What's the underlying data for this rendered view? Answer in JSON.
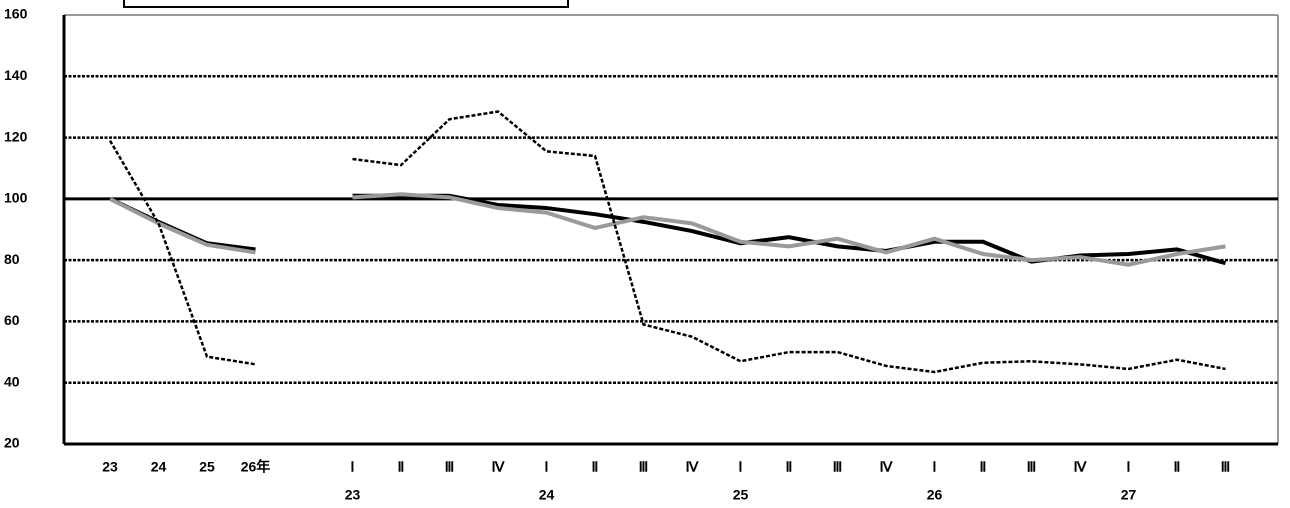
{
  "chart_data": {
    "type": "line",
    "categories": [
      "23",
      "24",
      "25",
      "26年",
      null,
      "Ⅰ",
      "Ⅱ",
      "Ⅲ",
      "Ⅳ",
      "Ⅰ",
      "Ⅱ",
      "Ⅲ",
      "Ⅳ",
      "Ⅰ",
      "Ⅱ",
      "Ⅲ",
      "Ⅳ",
      "Ⅰ",
      "Ⅱ",
      "Ⅲ",
      "Ⅳ",
      "Ⅰ",
      "Ⅱ",
      "Ⅲ"
    ],
    "year_labels": [
      null,
      null,
      null,
      null,
      null,
      "23",
      null,
      null,
      null,
      "24",
      null,
      null,
      null,
      "25",
      null,
      null,
      null,
      "26",
      null,
      null,
      null,
      "27",
      null,
      null
    ],
    "series": [
      {
        "color": "#000000",
        "style": "solid",
        "values": [
          100,
          92.5,
          85.5,
          83.5,
          null,
          101,
          101,
          101,
          98,
          97,
          95,
          92.5,
          89.5,
          85.5,
          87.5,
          84.5,
          83,
          86,
          86,
          79.5,
          81.5,
          82,
          83.5,
          79
        ]
      },
      {
        "color": "#9a9a9a",
        "style": "solid",
        "values": [
          100,
          92,
          85,
          82.5,
          null,
          100.5,
          101.5,
          100.5,
          97,
          95.5,
          90.5,
          94,
          92,
          86,
          84.5,
          87,
          82.5,
          87,
          82,
          80,
          81,
          78.5,
          82,
          84.5
        ]
      },
      {
        "color": "#000000",
        "style": "dashed",
        "values": [
          119,
          92,
          48.5,
          46,
          null,
          113,
          111,
          126,
          128.5,
          115.5,
          114,
          59,
          55,
          47,
          50,
          50,
          45.5,
          43.5,
          46.5,
          47,
          46,
          44.5,
          47.5,
          44.5
        ]
      }
    ],
    "ylim": [
      20,
      160
    ],
    "yticks": [
      20,
      40,
      60,
      80,
      100,
      120,
      140,
      160
    ],
    "baseline": 100,
    "grid": true
  }
}
